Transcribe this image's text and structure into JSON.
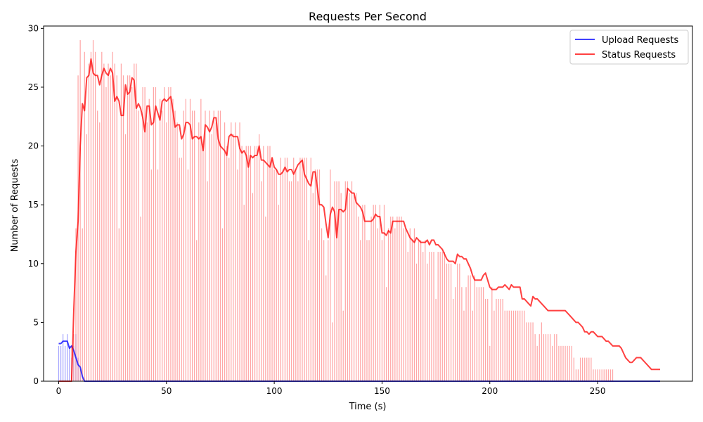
{
  "chart_data": {
    "type": "bar",
    "title": "Requests Per Second",
    "xlabel": "Time (s)",
    "ylabel": "Number of Requests",
    "xlim": [
      -7,
      294
    ],
    "ylim": [
      0,
      30.2
    ],
    "x_ticks": [
      0,
      50,
      100,
      150,
      200,
      250
    ],
    "y_ticks": [
      0,
      5,
      10,
      15,
      20,
      25,
      30
    ],
    "grid": false,
    "legend_position": "top-right",
    "x": [
      0,
      1,
      2,
      3,
      4,
      5,
      6,
      7,
      8,
      9,
      10,
      11,
      12,
      13,
      14,
      15,
      16,
      17,
      18,
      19,
      20,
      21,
      22,
      23,
      24,
      25,
      26,
      27,
      28,
      29,
      30,
      31,
      32,
      33,
      34,
      35,
      36,
      37,
      38,
      39,
      40,
      41,
      42,
      43,
      44,
      45,
      46,
      47,
      48,
      49,
      50,
      51,
      52,
      53,
      54,
      55,
      56,
      57,
      58,
      59,
      60,
      61,
      62,
      63,
      64,
      65,
      66,
      67,
      68,
      69,
      70,
      71,
      72,
      73,
      74,
      75,
      76,
      77,
      78,
      79,
      80,
      81,
      82,
      83,
      84,
      85,
      86,
      87,
      88,
      89,
      90,
      91,
      92,
      93,
      94,
      95,
      96,
      97,
      98,
      99,
      100,
      101,
      102,
      103,
      104,
      105,
      106,
      107,
      108,
      109,
      110,
      111,
      112,
      113,
      114,
      115,
      116,
      117,
      118,
      119,
      120,
      121,
      122,
      123,
      124,
      125,
      126,
      127,
      128,
      129,
      130,
      131,
      132,
      133,
      134,
      135,
      136,
      137,
      138,
      139,
      140,
      141,
      142,
      143,
      144,
      145,
      146,
      147,
      148,
      149,
      150,
      151,
      152,
      153,
      154,
      155,
      156,
      157,
      158,
      159,
      160,
      161,
      162,
      163,
      164,
      165,
      166,
      167,
      168,
      169,
      170,
      171,
      172,
      173,
      174,
      175,
      176,
      177,
      178,
      179,
      180,
      181,
      182,
      183,
      184,
      185,
      186,
      187,
      188,
      189,
      190,
      191,
      192,
      193,
      194,
      195,
      196,
      197,
      198,
      199,
      200,
      201,
      202,
      203,
      204,
      205,
      206,
      207,
      208,
      209,
      210,
      211,
      212,
      213,
      214,
      215,
      216,
      217,
      218,
      219,
      220,
      221,
      222,
      223,
      224,
      225,
      226,
      227,
      228,
      229,
      230,
      231,
      232,
      233,
      234,
      235,
      236,
      237,
      238,
      239,
      240,
      241,
      242,
      243,
      244,
      245,
      246,
      247,
      248,
      249,
      250,
      251,
      252,
      253,
      254,
      255,
      256,
      257,
      258,
      259,
      260,
      261,
      262,
      263,
      264,
      265,
      266,
      267,
      268,
      269,
      270,
      271,
      272,
      273,
      274,
      275,
      276,
      277,
      278,
      279
    ],
    "series": [
      {
        "name": "Upload Requests",
        "color": "#0000ff",
        "bar_color": "#8080ff",
        "bar_values": [
          3,
          3,
          4,
          3,
          4,
          3,
          2,
          3,
          4,
          2,
          1,
          0,
          0,
          0,
          0,
          0,
          0,
          0,
          0,
          0,
          0,
          0,
          0,
          0,
          0,
          0,
          0,
          0,
          0,
          0,
          0,
          0,
          0,
          0,
          0,
          0,
          0,
          0,
          0,
          0,
          0,
          0,
          0,
          0,
          0,
          0,
          0,
          0,
          0,
          0,
          0,
          0,
          0,
          0,
          0,
          0,
          0,
          0,
          0,
          0,
          0,
          0,
          0,
          0,
          0,
          0,
          0,
          0,
          0,
          0,
          0,
          0,
          0,
          0,
          0,
          0,
          0,
          0,
          0,
          0,
          0,
          0,
          0,
          0,
          0,
          0,
          0,
          0,
          0,
          0,
          0,
          0,
          0,
          0,
          0,
          0,
          0,
          0,
          0,
          0,
          0,
          0,
          0,
          0,
          0,
          0,
          0,
          0,
          0,
          0,
          0,
          0,
          0,
          0,
          0,
          0,
          0,
          0,
          0,
          0,
          0,
          0,
          0,
          0,
          0,
          0,
          0,
          0,
          0,
          0,
          0,
          0,
          0,
          0,
          0,
          0,
          0,
          0,
          0,
          0,
          0,
          0,
          0,
          0,
          0,
          0,
          0,
          0,
          0,
          0,
          0,
          0,
          0,
          0,
          0,
          0,
          0,
          0,
          0,
          0,
          0,
          0,
          0,
          0,
          0,
          0,
          0,
          0,
          0,
          0,
          0,
          0,
          0,
          0,
          0,
          0,
          0,
          0,
          0,
          0,
          0,
          0,
          0,
          0,
          0,
          0,
          0,
          0,
          0,
          0,
          0,
          0,
          0,
          0,
          0,
          0,
          0,
          0,
          0,
          0,
          0,
          0,
          0,
          0,
          0,
          0,
          0,
          0,
          0,
          0,
          0,
          0,
          0,
          0,
          0,
          0,
          0,
          0,
          0,
          0,
          0,
          0,
          0,
          0,
          0,
          0,
          0,
          0,
          0,
          0,
          0,
          0,
          0,
          0,
          0,
          0,
          0,
          0,
          0,
          0,
          0,
          0,
          0,
          0,
          0,
          0,
          0,
          0,
          0,
          0,
          0,
          0,
          0,
          0,
          0,
          0,
          0,
          0,
          0,
          0,
          0,
          0,
          0,
          0,
          0,
          0,
          0,
          0,
          0,
          0,
          0,
          0,
          0,
          0,
          0,
          0,
          0,
          0,
          0,
          0,
          0,
          0,
          0,
          0,
          0,
          0,
          0,
          0,
          0,
          0,
          0
        ],
        "line_values": [
          3.2,
          3.2,
          3.4,
          3.4,
          3.4,
          2.8,
          3.0,
          2.6,
          2.0,
          1.4,
          1.2,
          0.4,
          0.0,
          0.0,
          0.0,
          0.0,
          0.0,
          0.0,
          0.0,
          0.0,
          0.0,
          0.0,
          0.0,
          0.0,
          0.0,
          0.0,
          0.0,
          0.0,
          0.0,
          0.0,
          0.0,
          0.0,
          0.0,
          0.0,
          0.0,
          0.0,
          0.0,
          0.0,
          0.0,
          0.0,
          0.0,
          0.0,
          0.0,
          0.0,
          0.0,
          0.0,
          0.0,
          0.0,
          0.0,
          0.0,
          0.0,
          0.0,
          0.0,
          0.0,
          0.0,
          0.0,
          0.0,
          0.0,
          0.0,
          0.0,
          0.0,
          0.0,
          0.0,
          0.0,
          0.0,
          0.0,
          0.0,
          0.0,
          0.0,
          0.0,
          0.0,
          0.0,
          0.0,
          0.0,
          0.0,
          0.0,
          0.0,
          0.0,
          0.0,
          0.0,
          0.0,
          0.0,
          0.0,
          0.0,
          0.0,
          0.0,
          0.0,
          0.0,
          0.0,
          0.0,
          0.0,
          0.0,
          0.0,
          0.0,
          0.0,
          0.0,
          0.0,
          0.0,
          0.0,
          0.0,
          0.0,
          0.0,
          0.0,
          0.0,
          0.0,
          0.0,
          0.0,
          0.0,
          0.0,
          0.0,
          0.0,
          0.0,
          0.0,
          0.0,
          0.0,
          0.0,
          0.0,
          0.0,
          0.0,
          0.0,
          0.0,
          0.0,
          0.0,
          0.0,
          0.0,
          0.0,
          0.0,
          0.0,
          0.0,
          0.0,
          0.0,
          0.0,
          0.0,
          0.0,
          0.0,
          0.0,
          0.0,
          0.0,
          0.0,
          0.0,
          0.0,
          0.0,
          0.0,
          0.0,
          0.0,
          0.0,
          0.0,
          0.0,
          0.0,
          0.0,
          0.0,
          0.0,
          0.0,
          0.0,
          0.0,
          0.0,
          0.0,
          0.0,
          0.0,
          0.0,
          0.0,
          0.0,
          0.0,
          0.0,
          0.0,
          0.0,
          0.0,
          0.0,
          0.0,
          0.0,
          0.0,
          0.0,
          0.0,
          0.0,
          0.0,
          0.0,
          0.0,
          0.0,
          0.0,
          0.0,
          0.0,
          0.0,
          0.0,
          0.0,
          0.0,
          0.0,
          0.0,
          0.0,
          0.0,
          0.0,
          0.0,
          0.0,
          0.0,
          0.0,
          0.0,
          0.0,
          0.0,
          0.0,
          0.0,
          0.0,
          0.0,
          0.0,
          0.0,
          0.0,
          0.0,
          0.0,
          0.0,
          0.0,
          0.0,
          0.0,
          0.0,
          0.0,
          0.0,
          0.0,
          0.0,
          0.0,
          0.0,
          0.0,
          0.0,
          0.0,
          0.0,
          0.0,
          0.0,
          0.0,
          0.0,
          0.0,
          0.0,
          0.0,
          0.0,
          0.0,
          0.0,
          0.0,
          0.0,
          0.0,
          0.0,
          0.0,
          0.0,
          0.0,
          0.0,
          0.0,
          0.0,
          0.0,
          0.0,
          0.0,
          0.0,
          0.0,
          0.0,
          0.0,
          0.0,
          0.0,
          0.0,
          0.0,
          0.0,
          0.0,
          0.0,
          0.0,
          0.0,
          0.0,
          0.0,
          0.0,
          0.0,
          0.0,
          0.0,
          0.0,
          0.0,
          0.0,
          0.0,
          0.0,
          0.0,
          0.0,
          0.0,
          0.0,
          0.0,
          0.0,
          0.0,
          0.0,
          0.0,
          0.0,
          0.0,
          0.0
        ]
      },
      {
        "name": "Status Requests",
        "color": "#ff0000",
        "bar_color": "#ff8080",
        "bar_values": [
          0,
          0,
          0,
          0,
          0,
          0,
          3,
          4,
          13,
          26,
          29,
          13,
          28,
          21,
          27,
          28,
          29,
          28,
          23,
          22,
          28,
          27,
          25,
          27,
          26,
          28,
          27,
          26,
          13,
          27,
          26,
          21,
          26,
          26,
          25,
          27,
          27,
          23,
          14,
          25,
          25,
          22,
          24,
          18,
          25,
          25,
          18,
          24,
          23,
          25,
          22,
          25,
          25,
          24,
          23,
          22,
          19,
          19,
          23,
          24,
          18,
          24,
          23,
          23,
          12,
          22,
          24,
          20,
          23,
          17,
          23,
          21,
          23,
          22,
          23,
          23,
          13,
          22,
          20,
          19,
          22,
          21,
          22,
          18,
          22,
          20,
          15,
          20,
          20,
          20,
          16,
          20,
          20,
          21,
          17,
          20,
          14,
          20,
          20,
          19,
          18,
          18,
          15,
          19,
          18,
          19,
          19,
          17,
          17,
          19,
          18,
          17,
          19,
          19,
          19,
          19,
          12,
          19,
          16,
          18,
          18,
          18,
          13,
          12,
          9,
          12,
          18,
          5,
          17,
          17,
          17,
          16,
          6,
          17,
          17,
          16,
          17,
          16,
          16,
          14,
          12,
          15,
          15,
          12,
          12,
          14,
          15,
          15,
          13,
          15,
          12,
          15,
          8,
          13,
          14,
          14,
          13,
          14,
          14,
          14,
          13,
          13,
          11,
          13,
          12,
          13,
          10,
          12,
          12,
          11,
          12,
          10,
          11,
          11,
          11,
          7,
          11,
          11,
          11,
          11,
          10,
          10,
          10,
          7,
          8,
          10,
          10,
          8,
          6,
          8,
          9,
          9,
          6,
          9,
          8,
          8,
          8,
          8,
          7,
          7,
          3,
          8,
          6,
          7,
          7,
          7,
          7,
          6,
          6,
          6,
          6,
          6,
          6,
          6,
          6,
          6,
          6,
          5,
          5,
          5,
          5,
          4,
          3,
          4,
          5,
          4,
          4,
          4,
          4,
          3,
          4,
          4,
          3,
          3,
          3,
          3,
          3,
          3,
          3,
          2,
          1,
          1,
          2,
          2,
          2,
          2,
          2,
          2,
          1,
          1,
          1,
          1,
          1,
          1,
          1,
          1,
          1,
          1
        ],
        "line_values": [
          0.0,
          0.0,
          0.0,
          0.0,
          0.0,
          0.0,
          0.0,
          6.0,
          11.0,
          13.6,
          20.0,
          23.6,
          23.0,
          25.8,
          26.0,
          27.4,
          26.2,
          26.0,
          26.0,
          25.2,
          26.0,
          26.6,
          26.2,
          26.0,
          26.6,
          26.2,
          23.8,
          24.2,
          23.8,
          22.6,
          22.6,
          25.2,
          24.4,
          24.6,
          25.8,
          25.6,
          23.2,
          23.6,
          23.2,
          22.4,
          21.2,
          23.4,
          23.4,
          21.8,
          22.0,
          23.4,
          22.8,
          22.2,
          23.8,
          24.0,
          23.8,
          24.0,
          24.2,
          23.0,
          21.6,
          21.8,
          21.8,
          20.6,
          21.0,
          22.0,
          22.0,
          21.8,
          20.6,
          20.8,
          20.8,
          20.6,
          20.8,
          19.6,
          21.8,
          21.6,
          21.2,
          21.6,
          22.4,
          22.4,
          20.6,
          20.0,
          19.8,
          19.6,
          19.2,
          20.8,
          21.0,
          20.8,
          20.8,
          20.8,
          19.8,
          19.4,
          19.6,
          19.2,
          18.2,
          19.2,
          19.0,
          19.2,
          19.2,
          20.0,
          18.8,
          18.8,
          18.6,
          18.4,
          18.2,
          19.0,
          18.2,
          18.0,
          17.6,
          17.6,
          17.8,
          18.2,
          17.8,
          18.0,
          18.0,
          17.6,
          18.0,
          18.4,
          18.6,
          18.8,
          17.6,
          17.2,
          16.8,
          16.6,
          17.8,
          17.8,
          16.4,
          15.0,
          15.0,
          14.8,
          13.4,
          12.2,
          14.2,
          14.8,
          14.4,
          12.2,
          14.6,
          14.6,
          14.4,
          14.6,
          16.4,
          16.2,
          16.0,
          16.0,
          15.2,
          15.0,
          14.8,
          14.4,
          13.6,
          13.6,
          13.6,
          13.6,
          13.8,
          14.2,
          14.0,
          14.0,
          12.6,
          12.6,
          12.4,
          12.8,
          12.6,
          13.6,
          13.6,
          13.6,
          13.6,
          13.6,
          13.6,
          13.0,
          12.6,
          12.2,
          12.0,
          11.8,
          12.2,
          12.0,
          11.8,
          11.8,
          11.8,
          12.0,
          11.6,
          12.0,
          12.0,
          11.6,
          11.6,
          11.4,
          11.2,
          10.8,
          10.4,
          10.2,
          10.2,
          10.2,
          10.0,
          10.8,
          10.6,
          10.6,
          10.4,
          10.4,
          10.0,
          9.6,
          9.0,
          8.6,
          8.6,
          8.6,
          8.6,
          9.0,
          9.2,
          8.6,
          8.0,
          7.8,
          7.8,
          7.8,
          8.0,
          8.0,
          8.0,
          8.2,
          8.0,
          7.8,
          8.2,
          8.0,
          8.0,
          8.0,
          8.0,
          7.0,
          7.0,
          6.8,
          6.6,
          6.4,
          7.2,
          7.0,
          7.0,
          6.8,
          6.6,
          6.4,
          6.2,
          6.0,
          6.0,
          6.0,
          6.0,
          6.0,
          6.0,
          6.0,
          6.0,
          6.0,
          5.8,
          5.6,
          5.4,
          5.2,
          5.0,
          5.0,
          4.8,
          4.6,
          4.2,
          4.2,
          4.0,
          4.2,
          4.2,
          4.0,
          3.8,
          3.8,
          3.8,
          3.6,
          3.4,
          3.4,
          3.2,
          3.0,
          3.0,
          3.0,
          3.0,
          2.8,
          2.4,
          2.0,
          1.8,
          1.6,
          1.6,
          1.8,
          2.0,
          2.0,
          2.0,
          1.8,
          1.6,
          1.4,
          1.2,
          1.0,
          1.0,
          1.0,
          1.0,
          1.0,
          1.0,
          1.0,
          1.0
        ]
      }
    ]
  }
}
